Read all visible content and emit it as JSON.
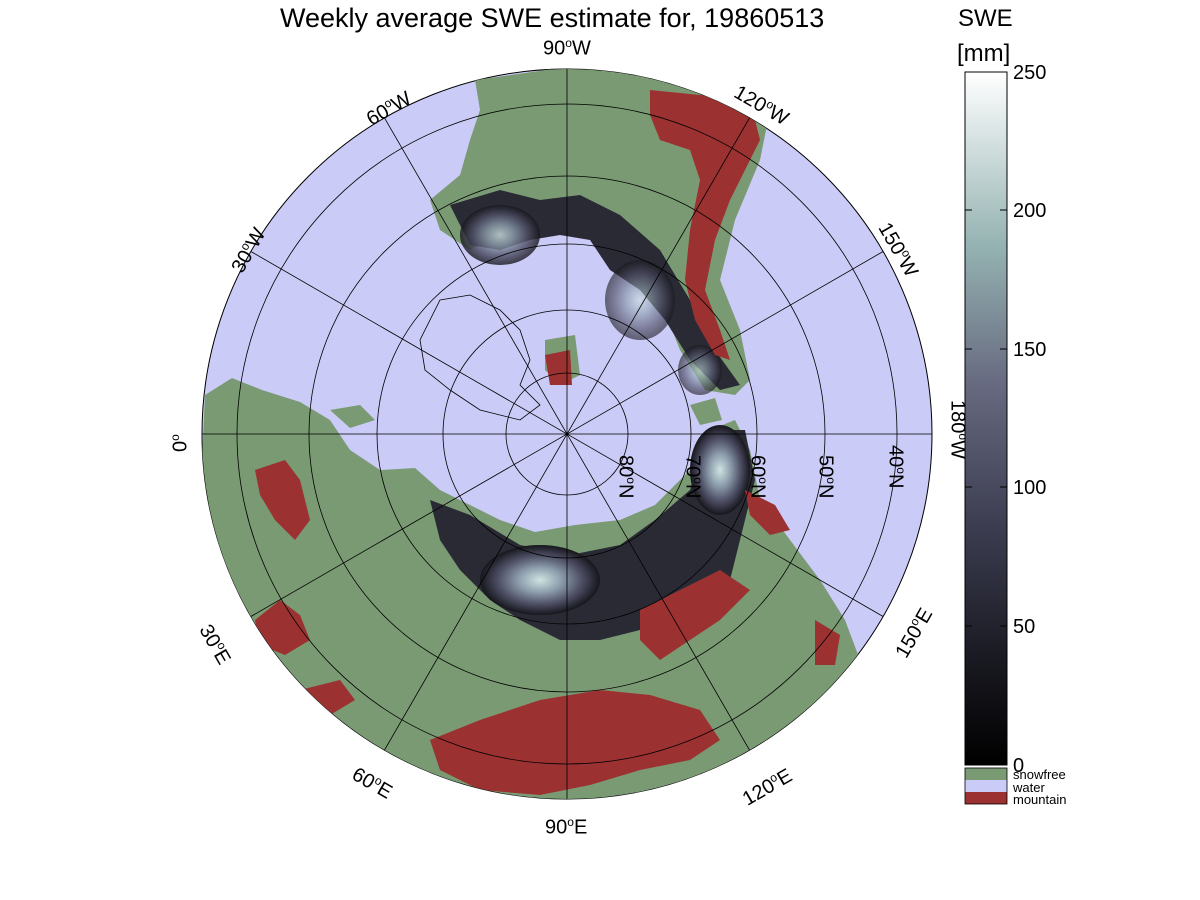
{
  "title": "Weekly average SWE estimate for, 19860513",
  "colorbar": {
    "title_line1": "SWE",
    "title_line2": "[mm]",
    "ticks": [
      "0",
      "50",
      "100",
      "150",
      "200",
      "250"
    ],
    "range": [
      0,
      250
    ],
    "categories": [
      {
        "label": "snowfree",
        "color": "#7a9a73"
      },
      {
        "label": "water",
        "color": "#cbcbf7"
      },
      {
        "label": "mountain",
        "color": "#9b3131"
      }
    ]
  },
  "map": {
    "projection": "north polar stereographic",
    "lon_labels": {
      "n90w": "90",
      "n90e": "90",
      "lon60w": "60",
      "lon120w": "120",
      "lon30w": "30",
      "lon150w": "150",
      "lon0": "0",
      "lon180w": "180",
      "lon30e": "30",
      "lon150e": "150",
      "lon60e": "60",
      "lon120e": "120"
    },
    "lon_suffix": {
      "W": "W",
      "E": "E",
      "zero": ""
    },
    "lat_labels": [
      "80",
      "70",
      "60",
      "50",
      "40"
    ],
    "lat_suffix": "N",
    "colors": {
      "water": "#cbcbf7",
      "land": "#7a9a73",
      "mountain": "#9b3131",
      "snow_dark": "#16161c",
      "snow_mid": "#595b74",
      "snow_light": "#cfe3e0"
    }
  }
}
